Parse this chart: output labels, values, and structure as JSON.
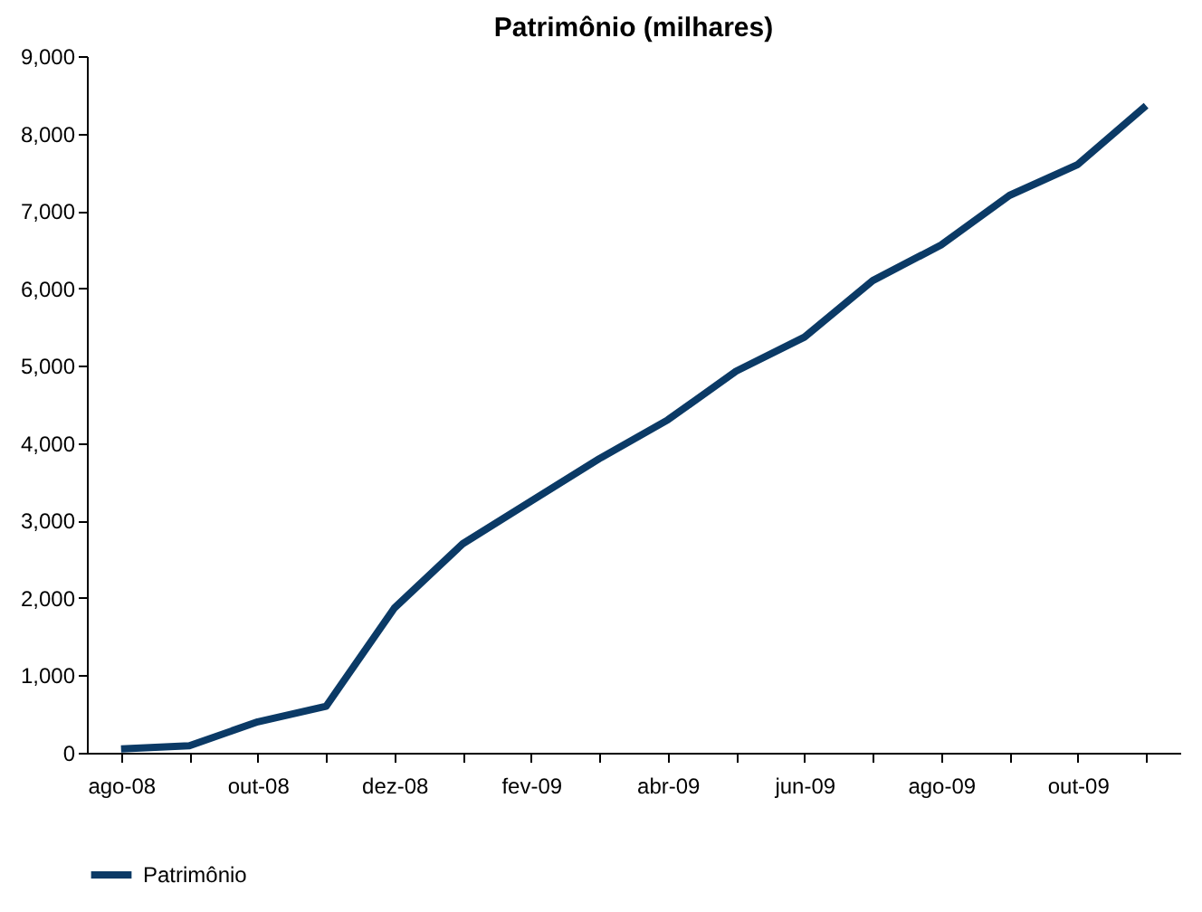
{
  "chart_data": {
    "type": "line",
    "title": "Patrimônio (milhares)",
    "categories": [
      "ago-08",
      null,
      "out-08",
      null,
      "dez-08",
      null,
      "fev-09",
      null,
      "abr-09",
      null,
      "jun-09",
      null,
      "ago-09",
      null,
      "out-09",
      null
    ],
    "series": [
      {
        "name": "Patrimônio",
        "color": "#0b3a66",
        "values": [
          50,
          90,
          400,
          600,
          1870,
          2700,
          3250,
          3800,
          4300,
          4930,
          5370,
          6100,
          6560,
          7200,
          7600,
          8360
        ]
      }
    ],
    "ylim": [
      0,
      9000
    ],
    "yticks": [
      {
        "value": 0,
        "label": "0"
      },
      {
        "value": 1000,
        "label": "1,000"
      },
      {
        "value": 2000,
        "label": "2,000"
      },
      {
        "value": 3000,
        "label": "3,000"
      },
      {
        "value": 4000,
        "label": "4,000"
      },
      {
        "value": 5000,
        "label": "5,000"
      },
      {
        "value": 6000,
        "label": "6,000"
      },
      {
        "value": 7000,
        "label": "7,000"
      },
      {
        "value": 8000,
        "label": "8,000"
      },
      {
        "value": 9000,
        "label": "9,000"
      }
    ],
    "grid": false,
    "legend": "bottom",
    "marker": "none",
    "line_style": "solid"
  }
}
